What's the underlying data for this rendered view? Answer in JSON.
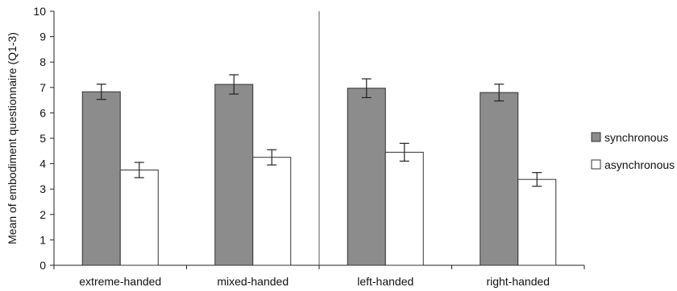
{
  "chart_data": {
    "type": "bar",
    "title": "",
    "xlabel": "",
    "ylabel": "Mean of embodiment questionnaire (Q1-3)",
    "ylim": [
      0,
      10
    ],
    "yticks": [
      0,
      1,
      2,
      3,
      4,
      5,
      6,
      7,
      8,
      9,
      10
    ],
    "categories": [
      "extreme-handed",
      "mixed-handed",
      "left-handed",
      "right-handed"
    ],
    "series": [
      {
        "name": "synchronous",
        "color": "#8c8c8c",
        "values": [
          6.83,
          7.12,
          6.97,
          6.8
        ],
        "error": [
          0.3,
          0.38,
          0.37,
          0.33
        ]
      },
      {
        "name": "asynchronous",
        "color": "#ffffff",
        "values": [
          3.75,
          4.25,
          4.45,
          3.38
        ],
        "error": [
          0.3,
          0.3,
          0.35,
          0.27
        ]
      }
    ],
    "grid": false,
    "legend_position": "right",
    "separator_after_category": 1
  }
}
